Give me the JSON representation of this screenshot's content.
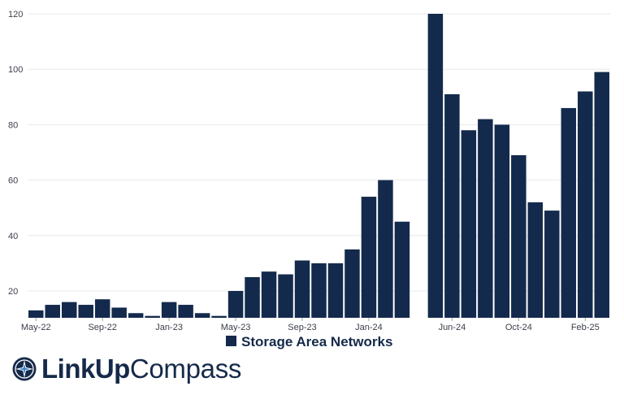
{
  "chart_data": {
    "type": "bar",
    "categories": [
      "May-22",
      "Jun-22",
      "Jul-22",
      "Aug-22",
      "Sep-22",
      "Oct-22",
      "Nov-22",
      "Dec-22",
      "Jan-23",
      "Feb-23",
      "Mar-23",
      "Apr-23",
      "May-23",
      "Jun-23",
      "Jul-23",
      "Aug-23",
      "Sep-23",
      "Oct-23",
      "Nov-23",
      "Dec-23",
      "Jan-24",
      "Feb-24",
      "Mar-24",
      "Apr-24",
      "May-24",
      "Jun-24",
      "Jul-24",
      "Aug-24",
      "Sep-24",
      "Oct-24",
      "Nov-24",
      "Dec-24",
      "Jan-25",
      "Feb-25",
      "Mar-25"
    ],
    "series": [
      {
        "name": "Storage Area Networks",
        "values": [
          13,
          15,
          16,
          15,
          17,
          14,
          12,
          11,
          16,
          15,
          12,
          11,
          20,
          25,
          27,
          26,
          31,
          30,
          30,
          35,
          54,
          60,
          45,
          null,
          120,
          91,
          78,
          82,
          80,
          69,
          52,
          49,
          86,
          92,
          99
        ]
      }
    ],
    "xticks": [
      "May-22",
      "Sep-22",
      "Jan-23",
      "May-23",
      "Sep-23",
      "Jan-24",
      "Jun-24",
      "Oct-24",
      "Feb-25"
    ],
    "yticks": [
      20,
      40,
      60,
      80,
      100,
      120
    ],
    "ylim": [
      10,
      120
    ],
    "grid": "horizontal",
    "legend": "bottom",
    "bar_color": "#142a4c"
  },
  "logo": {
    "bold": "LinkUp",
    "light": "Compass",
    "icon": "compass-icon"
  }
}
